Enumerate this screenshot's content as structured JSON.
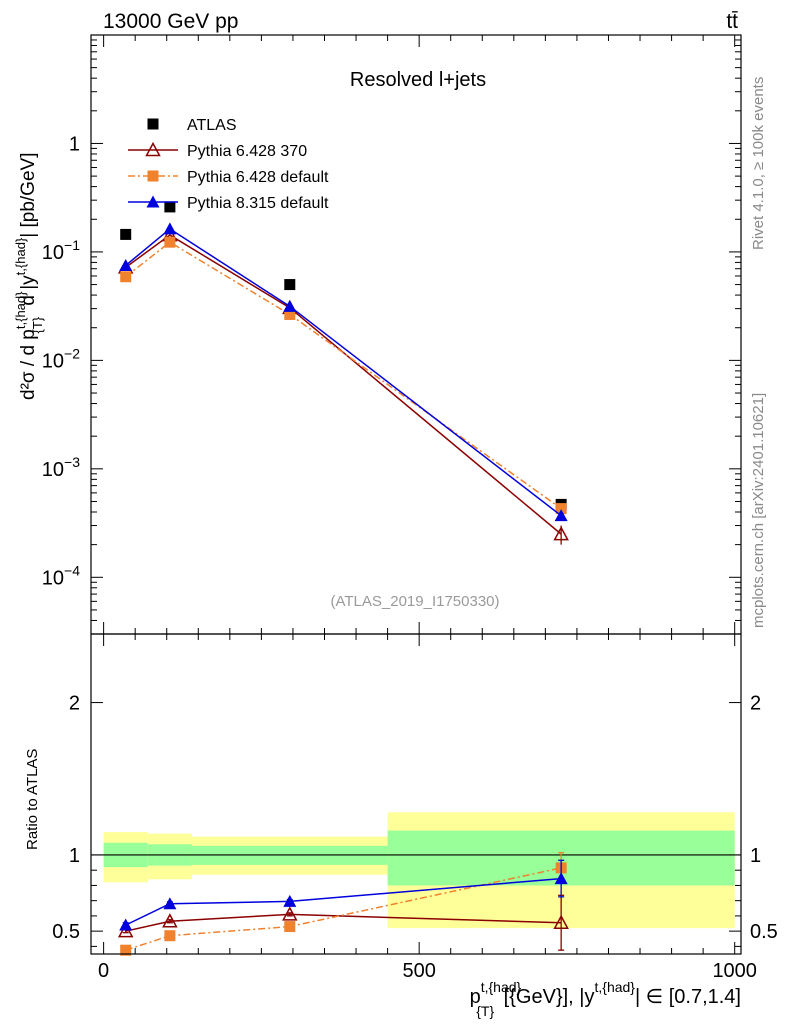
{
  "header": {
    "energy_label": "13000 GeV pp",
    "process_label": "tt̄"
  },
  "side_labels": {
    "rivet": "Rivet 4.1.0, ≥ 100k events",
    "mcplots": "mcplots.cern.ch [arXiv:2401.10621]"
  },
  "chart_data": [
    {
      "type": "line",
      "panel": "main",
      "title": "Resolved l+jets",
      "analysis_label": "(ATLAS_2019_I1750330)",
      "ylabel": "d²σ / d p^{t,{had}}_{T} d |y^{t,{had}}| [pb/GeV]",
      "y_scale": "log",
      "ylim": [
        3e-05,
        10
      ],
      "xlim": [
        -20,
        1010
      ],
      "y_tick_labels": [
        {
          "value": 1,
          "label": "1",
          "base": "",
          "exp": ""
        },
        {
          "value": 0.1,
          "label": "10^-1",
          "base": "10",
          "exp": "−1"
        },
        {
          "value": 0.01,
          "label": "10^-2",
          "base": "10",
          "exp": "−2"
        },
        {
          "value": 0.001,
          "label": "10^-3",
          "base": "10",
          "exp": "−3"
        },
        {
          "value": 0.0001,
          "label": "10^-4",
          "base": "10",
          "exp": "−4"
        }
      ],
      "legend_position": "top-left",
      "x": [
        35,
        105,
        295,
        725
      ],
      "series": [
        {
          "name": "ATLAS",
          "color": "#000000",
          "marker": "square",
          "line": "none",
          "values": [
            0.145,
            0.26,
            0.05,
            0.00047
          ]
        },
        {
          "name": "Pythia 6.428 370",
          "color": "#8b0000",
          "marker": "open-triangle",
          "line": "solid",
          "values": [
            0.072,
            0.143,
            0.0305,
            0.00025
          ],
          "errors": [
            0,
            0,
            0,
            5e-05
          ]
        },
        {
          "name": "Pythia 6.428 default",
          "color": "#f0822d",
          "marker": "square",
          "line": "dashdot",
          "values": [
            0.059,
            0.123,
            0.0265,
            0.00043
          ],
          "errors": [
            0,
            0,
            0,
            2e-05
          ]
        },
        {
          "name": "Pythia 8.315 default",
          "color": "#0000dd",
          "marker": "triangle",
          "line": "solid",
          "values": [
            0.075,
            0.163,
            0.0315,
            0.00037
          ],
          "errors": [
            0,
            0,
            0,
            2e-05
          ]
        }
      ]
    },
    {
      "type": "line",
      "panel": "ratio",
      "ylabel": "Ratio to ATLAS",
      "xlabel": "p^{t,{had}}_{T} [{GeV}], |y^{t,{had}}| ∈ [0.7,1.4]",
      "xlabel_main": "p",
      "xlabel_sup": "t,{had}",
      "xlabel_sub": "{T}",
      "xlabel_mid": " [{GeV}], |y",
      "xlabel_sup2": "t,{had}",
      "xlabel_end": "| ∈ [0.7,1.4]",
      "ylim": [
        0.35,
        2.45
      ],
      "xlim": [
        -20,
        1010
      ],
      "x_ticks": [
        0,
        500,
        1000
      ],
      "x_tick_labels": [
        "0",
        "500",
        "1000"
      ],
      "y_ticks": [
        0.5,
        1,
        2
      ],
      "y_tick_labels": [
        "0.5",
        "1",
        "2"
      ],
      "reference_line": 1,
      "bins": [
        {
          "x_low": 0,
          "x_high": 70,
          "yellow": [
            0.82,
            1.15
          ],
          "green": [
            0.92,
            1.08
          ]
        },
        {
          "x_low": 70,
          "x_high": 140,
          "yellow": [
            0.84,
            1.14
          ],
          "green": [
            0.93,
            1.07
          ]
        },
        {
          "x_low": 140,
          "x_high": 450,
          "yellow": [
            0.87,
            1.12
          ],
          "green": [
            0.935,
            1.06
          ]
        },
        {
          "x_low": 450,
          "x_high": 1000,
          "yellow": [
            0.52,
            1.28
          ],
          "green": [
            0.8,
            1.16
          ]
        }
      ],
      "x": [
        35,
        105,
        295,
        725
      ],
      "series": [
        {
          "name": "Pythia 6.428 370",
          "color": "#8b0000",
          "marker": "open-triangle",
          "line": "solid",
          "values": [
            0.5,
            0.565,
            0.61,
            0.555
          ],
          "errors": [
            0.01,
            0.01,
            0.01,
            0.18
          ]
        },
        {
          "name": "Pythia 6.428 default",
          "color": "#f0822d",
          "marker": "square",
          "line": "dashdot",
          "values": [
            0.375,
            0.47,
            0.53,
            0.915
          ],
          "errors": [
            0.012,
            0.01,
            0.01,
            0.1
          ]
        },
        {
          "name": "Pythia 8.315 default",
          "color": "#0000dd",
          "marker": "triangle",
          "line": "solid",
          "values": [
            0.54,
            0.68,
            0.695,
            0.845
          ],
          "errors": [
            0.015,
            0.012,
            0.012,
            0.12
          ]
        }
      ]
    }
  ]
}
